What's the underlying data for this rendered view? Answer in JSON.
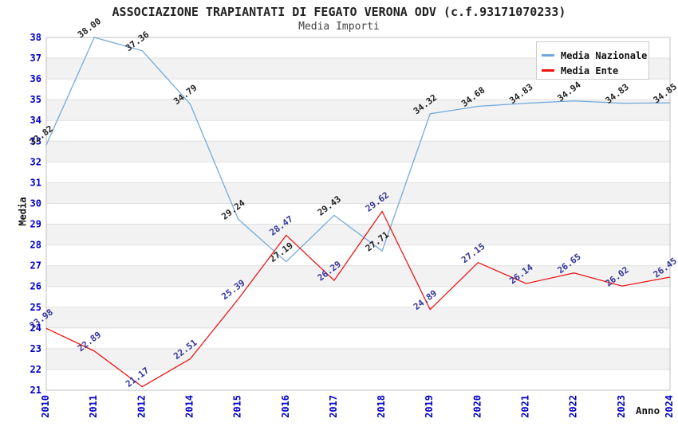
{
  "chart_data": {
    "type": "line",
    "title": "ASSOCIAZIONE TRAPIANTATI DI FEGATO VERONA ODV (c.f.93171070233)",
    "subtitle": "Media Importi",
    "xlabel": "Anno",
    "ylabel": "Media",
    "categories": [
      "2010",
      "2011",
      "2012",
      "2014",
      "2015",
      "2016",
      "2017",
      "2018",
      "2019",
      "2020",
      "2021",
      "2022",
      "2023",
      "2024"
    ],
    "series": [
      {
        "name": "Media Nazionale",
        "line_color": "#6fa8dc",
        "label_color": "#222222",
        "values": [
          32.82,
          38.0,
          37.36,
          34.79,
          29.24,
          27.19,
          29.43,
          27.71,
          34.32,
          34.68,
          34.83,
          34.94,
          34.83,
          34.85
        ]
      },
      {
        "name": "Media Ente",
        "line_color": "#ee1111",
        "label_color": "#333399",
        "values": [
          23.98,
          22.89,
          21.17,
          22.51,
          25.39,
          28.47,
          26.29,
          29.62,
          24.89,
          27.15,
          26.14,
          26.65,
          26.02,
          26.45
        ]
      }
    ],
    "ylim": [
      21,
      38
    ],
    "y_tick_step": 1,
    "value_label_decimals": 2,
    "legend_position": "top-right",
    "grid": {
      "horizontal_bands": true,
      "band_color": "#f2f2f2",
      "gridline_color": "#e0e0e0",
      "border_color": "#c0c0c0"
    },
    "tick_label_color": "#0000cc"
  }
}
